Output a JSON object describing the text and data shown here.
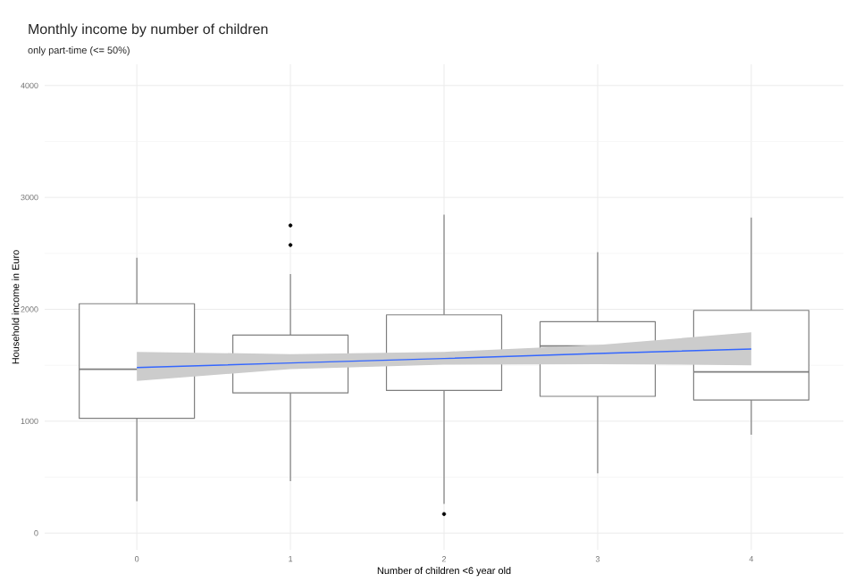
{
  "chart_data": {
    "type": "box",
    "title": "Monthly income by number of children",
    "subtitle": "only part-time (<= 50%)",
    "xlabel": "Number of children <6 year old",
    "ylabel": "Household income in Euro",
    "categories": [
      "0",
      "1",
      "2",
      "3",
      "4"
    ],
    "ylim": [
      -150,
      4190
    ],
    "yticks": [
      0,
      1000,
      2000,
      3000,
      4000
    ],
    "grid": true,
    "series": [
      {
        "color": "#7f7f7f",
        "boxes": [
          {
            "low": 285,
            "q1": 1025,
            "median": 1465,
            "q3": 2050,
            "high": 2460
          },
          {
            "low": 465,
            "q1": 1253,
            "median": 1540,
            "q3": 1770,
            "high": 2315,
            "outliers": [
              2575,
              2750
            ]
          },
          {
            "low": 260,
            "q1": 1275,
            "median": 1540,
            "q3": 1950,
            "high": 2845,
            "outliers": [
              170
            ]
          },
          {
            "low": 535,
            "q1": 1222,
            "median": 1672,
            "q3": 1890,
            "high": 2510
          },
          {
            "low": 880,
            "q1": 1190,
            "median": 1440,
            "q3": 1990,
            "high": 2820
          }
        ]
      },
      {
        "type": "line",
        "color": "#3366ff",
        "values": [
          1480,
          1520,
          1560,
          1605,
          1645
        ],
        "lower": [
          1360,
          1465,
          1505,
          1510,
          1500
        ],
        "upper": [
          1620,
          1600,
          1620,
          1680,
          1795
        ]
      }
    ]
  }
}
